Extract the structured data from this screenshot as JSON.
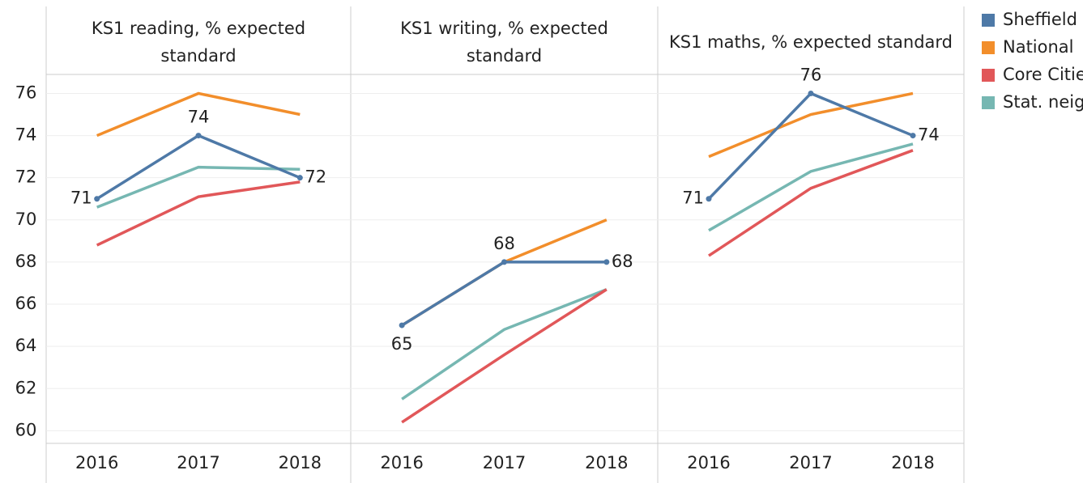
{
  "chart_data": [
    {
      "type": "line",
      "title": "KS1 reading, % expected standard",
      "categories": [
        "2016",
        "2017",
        "2018"
      ],
      "series": [
        {
          "name": "Sheffield",
          "color": "#4e79a7",
          "values": [
            71,
            74,
            72
          ]
        },
        {
          "name": "National",
          "color": "#f28e2b",
          "values": [
            74,
            76,
            75
          ]
        },
        {
          "name": "Core Cities",
          "color": "#e15759",
          "values": [
            68.8,
            71.1,
            71.8
          ]
        },
        {
          "name": "Stat. neighbours",
          "color": "#76b7b2",
          "values": [
            70.6,
            72.5,
            72.4
          ]
        }
      ],
      "ylim": [
        59.4,
        76.9
      ],
      "yticks": [
        60,
        62,
        64,
        66,
        68,
        70,
        72,
        74,
        76
      ],
      "grid": true
    },
    {
      "type": "line",
      "title": "KS1 writing, % expected standard",
      "categories": [
        "2016",
        "2017",
        "2018"
      ],
      "series": [
        {
          "name": "Sheffield",
          "color": "#4e79a7",
          "values": [
            65,
            68,
            68
          ]
        },
        {
          "name": "National",
          "color": "#f28e2b",
          "values": [
            65,
            68,
            70
          ]
        },
        {
          "name": "Core Cities",
          "color": "#e15759",
          "values": [
            60.4,
            63.6,
            66.7
          ]
        },
        {
          "name": "Stat. neighbours",
          "color": "#76b7b2",
          "values": [
            61.5,
            64.8,
            66.7
          ]
        }
      ],
      "ylim": [
        59.4,
        76.9
      ],
      "yticks": [
        60,
        62,
        64,
        66,
        68,
        70,
        72,
        74,
        76
      ],
      "grid": true
    },
    {
      "type": "line",
      "title": "KS1 maths, % expected standard",
      "categories": [
        "2016",
        "2017",
        "2018"
      ],
      "series": [
        {
          "name": "Sheffield",
          "color": "#4e79a7",
          "values": [
            71,
            76,
            74
          ]
        },
        {
          "name": "National",
          "color": "#f28e2b",
          "values": [
            73,
            75,
            76
          ]
        },
        {
          "name": "Core Cities",
          "color": "#e15759",
          "values": [
            68.3,
            71.5,
            73.3
          ]
        },
        {
          "name": "Stat. neighbours",
          "color": "#76b7b2",
          "values": [
            69.5,
            72.3,
            73.6
          ]
        }
      ],
      "ylim": [
        59.4,
        76.9
      ],
      "yticks": [
        60,
        62,
        64,
        66,
        68,
        70,
        72,
        74,
        76
      ],
      "grid": true
    }
  ]
}
